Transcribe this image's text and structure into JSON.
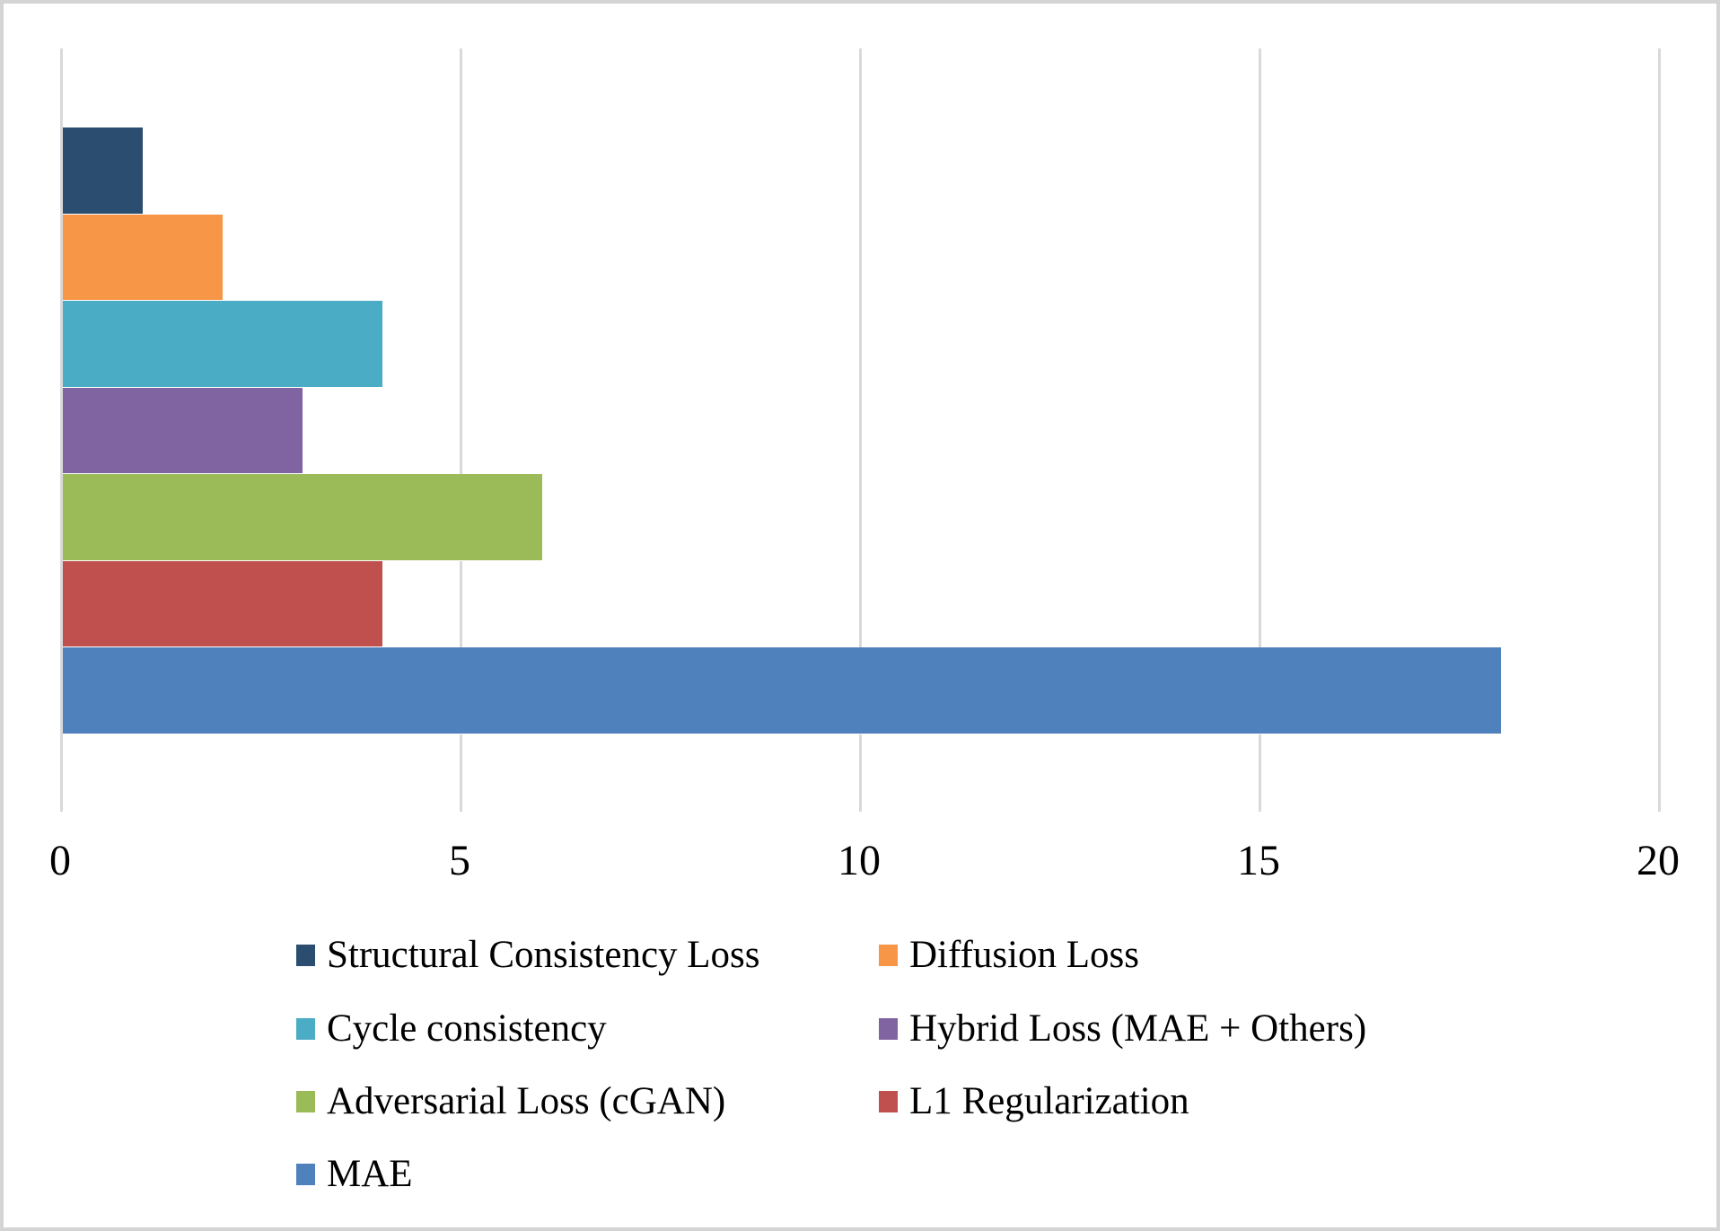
{
  "chart_data": {
    "type": "bar",
    "orientation": "horizontal",
    "categories": [
      "Structural Consistency Loss",
      "Diffusion Loss",
      "Cycle consistency",
      "Hybrid Loss (MAE + Others)",
      "Adversarial Loss (cGAN)",
      "L1 Regularization",
      "MAE"
    ],
    "values": [
      1,
      2,
      4,
      3,
      6,
      4,
      18
    ],
    "colors": [
      "#2b4d6f",
      "#f79646",
      "#4bacc6",
      "#8064a2",
      "#9bbb59",
      "#c0504d",
      "#4f81bd"
    ],
    "xlim": [
      0,
      20
    ],
    "x_ticks": [
      0,
      5,
      10,
      15,
      20
    ],
    "grid": true,
    "gridline_color": "#d9d9d9",
    "legend_position": "bottom",
    "legend_columns": 2
  }
}
